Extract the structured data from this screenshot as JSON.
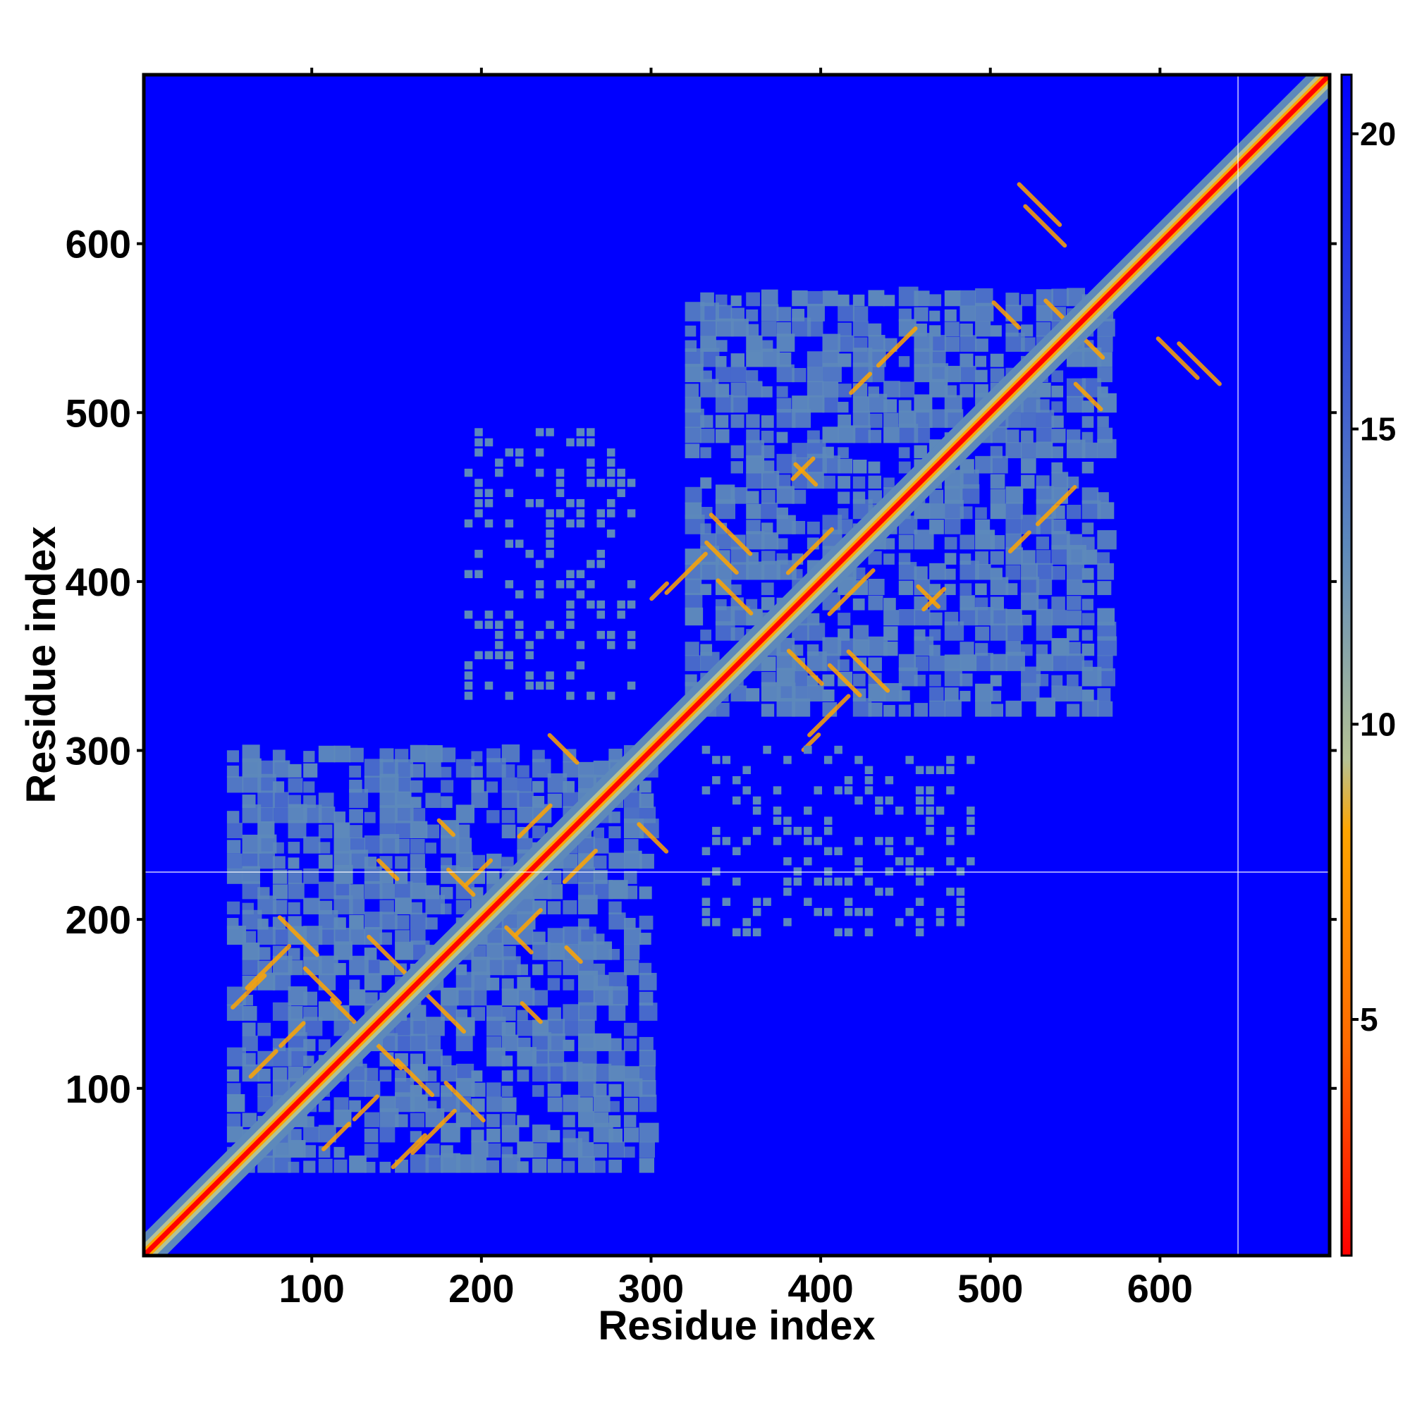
{
  "chart_data": {
    "type": "heatmap",
    "title": "",
    "xlabel": "Residue index",
    "ylabel": "Residue index",
    "xlim": [
      1,
      700
    ],
    "ylim": [
      1,
      700
    ],
    "xticks": [
      100,
      200,
      300,
      400,
      500,
      600
    ],
    "yticks": [
      100,
      200,
      300,
      400,
      500,
      600
    ],
    "colorbar": {
      "ticks": [
        5,
        10,
        15,
        20
      ],
      "range": [
        1,
        21
      ],
      "colors": [
        "#ff0000",
        "#ff6a00",
        "#ffa500",
        "#b5c295",
        "#5d89bb",
        "#0000ff"
      ]
    },
    "background_color": "#0000ff",
    "diagonal_color": "#ff0000",
    "contact_color": "#5d89bb",
    "domains": [
      {
        "name": "",
        "start": 50,
        "end": 295
      },
      {
        "name": "",
        "start": 320,
        "end": 570
      }
    ],
    "inter_domain_blocks": [
      {
        "x": [
          190,
          290
        ],
        "y": [
          330,
          490
        ]
      },
      {
        "x": [
          330,
          490
        ],
        "y": [
          190,
          300
        ]
      }
    ],
    "reference_lines": {
      "x": 646,
      "y": 228
    }
  }
}
